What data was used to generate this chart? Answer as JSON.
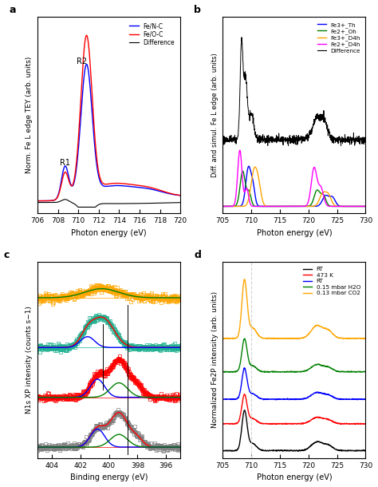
{
  "panel_a": {
    "xlabel": "Photon energy (eV)",
    "ylabel": "Norm. Fe L edge TEY (arb. units)",
    "xlim": [
      706,
      720
    ],
    "xticks": [
      706,
      708,
      710,
      712,
      714,
      716,
      718,
      720
    ],
    "legend": [
      "Fe/N-C",
      "Fe/O-C",
      "Difference"
    ],
    "colors": [
      "blue",
      "red",
      "black"
    ]
  },
  "panel_b": {
    "xlabel": "Photon energy (eV)",
    "ylabel": "Diff. and simul. Fe L edge (arb. units)",
    "xlim": [
      705,
      730
    ],
    "xticks": [
      705,
      710,
      715,
      720,
      725,
      730
    ],
    "legend": [
      "Fe3+_Th",
      "Fe2+_Oh",
      "Fe3+_D4h",
      "Fe2+_D4h",
      "Difference"
    ],
    "colors": [
      "blue",
      "green",
      "orange",
      "magenta",
      "black"
    ]
  },
  "panel_c": {
    "xlabel": "Binding energy (eV)",
    "ylabel": "N1s XP intensity (counts s−1)",
    "xlim": [
      405,
      395
    ],
    "xticks": [
      404,
      402,
      400,
      398,
      396
    ],
    "vline_x": 398.7
  },
  "panel_d": {
    "xlabel": "Photon energy (eV)",
    "ylabel": "Normalized Fe2P intensity (arb. units)",
    "xlim": [
      705,
      730
    ],
    "xticks": [
      705,
      710,
      715,
      720,
      725,
      730
    ],
    "legend": [
      "RT",
      "473 K",
      "RT",
      "0.15 mbar H2O",
      "0.13 mbar CO2"
    ],
    "colors": [
      "black",
      "red",
      "blue",
      "green",
      "orange"
    ],
    "vline_x": 710.0
  }
}
